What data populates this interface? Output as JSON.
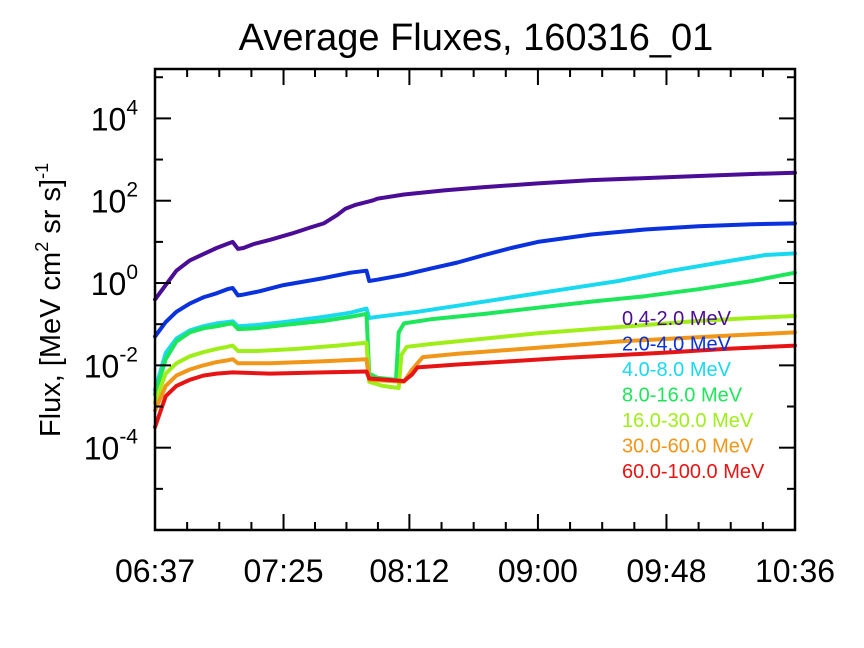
{
  "chart_data": {
    "type": "line",
    "title": "Average Fluxes, 160316_01",
    "ylabel": {
      "base": "Flux, [MeV cm",
      "cm_exp": "2",
      "middle": " sr s]",
      "exp": "-1"
    },
    "xlabel": "",
    "x_tick_labels": [
      "06:37",
      "07:25",
      "08:12",
      "09:00",
      "09:48",
      "10:36"
    ],
    "x_ticks_minutes": [
      397,
      445,
      492,
      540,
      588,
      636
    ],
    "xlim_minutes": [
      397,
      636
    ],
    "y_scale": "log",
    "ylim_log10": [
      -6,
      5.2
    ],
    "y_ticks": [
      {
        "base": "10",
        "exp": "4",
        "log": 4
      },
      {
        "base": "10",
        "exp": "2",
        "log": 2
      },
      {
        "base": "10",
        "exp": "0",
        "log": 0
      },
      {
        "base": "10",
        "exp": "-2",
        "log": -2
      },
      {
        "base": "10",
        "exp": "-4",
        "log": -4
      }
    ],
    "legend_position": "right",
    "series": [
      {
        "name": "0.4-2.0 MeV",
        "color": "#4b0d96",
        "points_log10": [
          [
            397,
            -0.4
          ],
          [
            401,
            -0.05
          ],
          [
            405,
            0.3
          ],
          [
            410,
            0.55
          ],
          [
            415,
            0.7
          ],
          [
            420,
            0.85
          ],
          [
            424,
            0.95
          ],
          [
            426,
            1.0
          ],
          [
            428,
            0.83
          ],
          [
            430,
            0.85
          ],
          [
            434,
            0.95
          ],
          [
            440,
            1.05
          ],
          [
            448,
            1.2
          ],
          [
            455,
            1.35
          ],
          [
            460,
            1.45
          ],
          [
            465,
            1.65
          ],
          [
            468,
            1.8
          ],
          [
            472,
            1.9
          ],
          [
            478,
            2.0
          ],
          [
            480,
            2.05
          ],
          [
            490,
            2.15
          ],
          [
            505,
            2.25
          ],
          [
            520,
            2.33
          ],
          [
            540,
            2.42
          ],
          [
            560,
            2.5
          ],
          [
            580,
            2.55
          ],
          [
            600,
            2.6
          ],
          [
            620,
            2.65
          ],
          [
            636,
            2.68
          ]
        ]
      },
      {
        "name": "2.0-4.0 MeV",
        "color": "#0a32dc",
        "points_log10": [
          [
            397,
            -1.3
          ],
          [
            401,
            -0.95
          ],
          [
            405,
            -0.7
          ],
          [
            410,
            -0.5
          ],
          [
            415,
            -0.35
          ],
          [
            420,
            -0.25
          ],
          [
            424,
            -0.15
          ],
          [
            426,
            -0.12
          ],
          [
            428,
            -0.3
          ],
          [
            430,
            -0.28
          ],
          [
            436,
            -0.2
          ],
          [
            445,
            -0.05
          ],
          [
            460,
            0.12
          ],
          [
            470,
            0.25
          ],
          [
            476,
            0.3
          ],
          [
            477,
            0.05
          ],
          [
            480,
            0.08
          ],
          [
            490,
            0.2
          ],
          [
            500,
            0.35
          ],
          [
            510,
            0.5
          ],
          [
            520,
            0.68
          ],
          [
            530,
            0.85
          ],
          [
            540,
            1.0
          ],
          [
            560,
            1.18
          ],
          [
            580,
            1.3
          ],
          [
            600,
            1.38
          ],
          [
            620,
            1.43
          ],
          [
            636,
            1.45
          ]
        ]
      },
      {
        "name": "4.0-8.0 MeV",
        "color": "#19d9f0",
        "points_log10": [
          [
            397,
            -2.6
          ],
          [
            401,
            -1.7
          ],
          [
            405,
            -1.35
          ],
          [
            410,
            -1.15
          ],
          [
            415,
            -1.05
          ],
          [
            420,
            -0.98
          ],
          [
            424,
            -0.95
          ],
          [
            426,
            -0.93
          ],
          [
            428,
            -1.05
          ],
          [
            435,
            -1.02
          ],
          [
            445,
            -0.95
          ],
          [
            460,
            -0.82
          ],
          [
            470,
            -0.72
          ],
          [
            476,
            -0.62
          ],
          [
            477,
            -0.85
          ],
          [
            480,
            -0.82
          ],
          [
            495,
            -0.7
          ],
          [
            510,
            -0.55
          ],
          [
            530,
            -0.35
          ],
          [
            550,
            -0.15
          ],
          [
            570,
            0.05
          ],
          [
            590,
            0.3
          ],
          [
            610,
            0.52
          ],
          [
            625,
            0.68
          ],
          [
            636,
            0.72
          ]
        ]
      },
      {
        "name": "8.0-16.0 MeV",
        "color": "#1ee65a",
        "points_log10": [
          [
            397,
            -2.7
          ],
          [
            401,
            -1.85
          ],
          [
            405,
            -1.42
          ],
          [
            410,
            -1.2
          ],
          [
            415,
            -1.1
          ],
          [
            420,
            -1.05
          ],
          [
            424,
            -1.0
          ],
          [
            426,
            -0.98
          ],
          [
            428,
            -1.12
          ],
          [
            435,
            -1.1
          ],
          [
            445,
            -1.02
          ],
          [
            460,
            -0.92
          ],
          [
            470,
            -0.82
          ],
          [
            476,
            -0.75
          ],
          [
            477,
            -2.2
          ],
          [
            480,
            -2.3
          ],
          [
            487,
            -2.35
          ],
          [
            488,
            -1.2
          ],
          [
            490,
            -0.98
          ],
          [
            500,
            -0.88
          ],
          [
            520,
            -0.75
          ],
          [
            540,
            -0.6
          ],
          [
            560,
            -0.45
          ],
          [
            580,
            -0.32
          ],
          [
            600,
            -0.15
          ],
          [
            620,
            0.05
          ],
          [
            636,
            0.25
          ]
        ]
      },
      {
        "name": "16.0-30.0 MeV",
        "color": "#a0ee19",
        "points_log10": [
          [
            397,
            -2.9
          ],
          [
            401,
            -2.2
          ],
          [
            405,
            -1.95
          ],
          [
            410,
            -1.78
          ],
          [
            415,
            -1.68
          ],
          [
            420,
            -1.6
          ],
          [
            424,
            -1.55
          ],
          [
            426,
            -1.52
          ],
          [
            428,
            -1.65
          ],
          [
            435,
            -1.65
          ],
          [
            450,
            -1.6
          ],
          [
            465,
            -1.52
          ],
          [
            476,
            -1.45
          ],
          [
            477,
            -2.4
          ],
          [
            482,
            -2.5
          ],
          [
            488,
            -2.55
          ],
          [
            489,
            -1.75
          ],
          [
            491,
            -1.55
          ],
          [
            500,
            -1.48
          ],
          [
            520,
            -1.35
          ],
          [
            540,
            -1.22
          ],
          [
            560,
            -1.12
          ],
          [
            580,
            -1.02
          ],
          [
            600,
            -0.92
          ],
          [
            620,
            -0.85
          ],
          [
            636,
            -0.8
          ]
        ]
      },
      {
        "name": "30.0-60.0 MeV",
        "color": "#f09619",
        "points_log10": [
          [
            397,
            -3.1
          ],
          [
            401,
            -2.5
          ],
          [
            405,
            -2.25
          ],
          [
            410,
            -2.1
          ],
          [
            415,
            -2.0
          ],
          [
            420,
            -1.92
          ],
          [
            424,
            -1.88
          ],
          [
            426,
            -1.85
          ],
          [
            428,
            -1.95
          ],
          [
            440,
            -1.95
          ],
          [
            460,
            -1.9
          ],
          [
            476,
            -1.85
          ],
          [
            477,
            -2.35
          ],
          [
            490,
            -2.4
          ],
          [
            493,
            -2.1
          ],
          [
            497,
            -1.8
          ],
          [
            510,
            -1.72
          ],
          [
            530,
            -1.62
          ],
          [
            550,
            -1.52
          ],
          [
            570,
            -1.42
          ],
          [
            590,
            -1.35
          ],
          [
            610,
            -1.28
          ],
          [
            636,
            -1.2
          ]
        ]
      },
      {
        "name": "60.0-100.0 MeV",
        "color": "#e61414",
        "points_log10": [
          [
            397,
            -3.5
          ],
          [
            401,
            -2.75
          ],
          [
            405,
            -2.5
          ],
          [
            410,
            -2.35
          ],
          [
            415,
            -2.25
          ],
          [
            420,
            -2.2
          ],
          [
            426,
            -2.17
          ],
          [
            440,
            -2.2
          ],
          [
            460,
            -2.17
          ],
          [
            476,
            -2.15
          ],
          [
            477,
            -2.32
          ],
          [
            490,
            -2.38
          ],
          [
            493,
            -2.22
          ],
          [
            495,
            -2.05
          ],
          [
            510,
            -1.98
          ],
          [
            530,
            -1.9
          ],
          [
            550,
            -1.82
          ],
          [
            570,
            -1.75
          ],
          [
            590,
            -1.68
          ],
          [
            610,
            -1.6
          ],
          [
            636,
            -1.52
          ]
        ]
      }
    ]
  }
}
